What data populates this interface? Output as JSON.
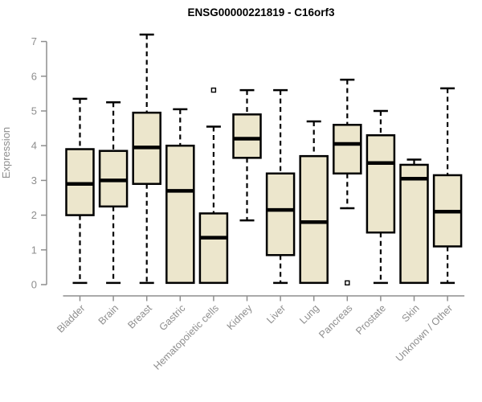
{
  "title": "ENSG00000221819 - C16orf3",
  "chart_data": {
    "type": "boxplot",
    "title": "ENSG00000221819 - C16orf3",
    "xlabel": "",
    "ylabel": "Expression",
    "ylim": [
      0,
      7
    ],
    "yticks": [
      0,
      1,
      2,
      3,
      4,
      5,
      6,
      7
    ],
    "grid": false,
    "legend": "none",
    "categories": [
      "Bladder",
      "Brain",
      "Breast",
      "Gastric",
      "Hematopoietic cells",
      "Kidney",
      "Liver",
      "Lung",
      "Pancreas",
      "Prostate",
      "Skin",
      "Unknown / Other"
    ],
    "series": [
      {
        "category": "Bladder",
        "whisker_low": 0.05,
        "q1": 2.0,
        "median": 2.9,
        "q3": 3.9,
        "whisker_high": 5.35,
        "outliers": []
      },
      {
        "category": "Brain",
        "whisker_low": 0.05,
        "q1": 2.25,
        "median": 3.0,
        "q3": 3.85,
        "whisker_high": 5.25,
        "outliers": []
      },
      {
        "category": "Breast",
        "whisker_low": 0.05,
        "q1": 2.9,
        "median": 3.95,
        "q3": 4.95,
        "whisker_high": 7.2,
        "outliers": []
      },
      {
        "category": "Gastric",
        "whisker_low": 0.05,
        "q1": 0.05,
        "median": 2.7,
        "q3": 4.0,
        "whisker_high": 5.05,
        "outliers": []
      },
      {
        "category": "Hematopoietic cells",
        "whisker_low": 0.05,
        "q1": 0.05,
        "median": 1.35,
        "q3": 2.05,
        "whisker_high": 4.55,
        "outliers": [
          5.6
        ]
      },
      {
        "category": "Kidney",
        "whisker_low": 1.85,
        "q1": 3.65,
        "median": 4.2,
        "q3": 4.9,
        "whisker_high": 5.6,
        "outliers": []
      },
      {
        "category": "Liver",
        "whisker_low": 0.05,
        "q1": 0.85,
        "median": 2.15,
        "q3": 3.2,
        "whisker_high": 5.6,
        "outliers": []
      },
      {
        "category": "Lung",
        "whisker_low": 0.05,
        "q1": 0.05,
        "median": 1.8,
        "q3": 3.7,
        "whisker_high": 4.7,
        "outliers": []
      },
      {
        "category": "Pancreas",
        "whisker_low": 2.2,
        "q1": 3.2,
        "median": 4.05,
        "q3": 4.6,
        "whisker_high": 5.9,
        "outliers": [
          0.05
        ]
      },
      {
        "category": "Prostate",
        "whisker_low": 0.05,
        "q1": 1.5,
        "median": 3.5,
        "q3": 4.3,
        "whisker_high": 5.0,
        "outliers": []
      },
      {
        "category": "Skin",
        "whisker_low": 0.05,
        "q1": 0.05,
        "median": 3.05,
        "q3": 3.45,
        "whisker_high": 3.6,
        "outliers": []
      },
      {
        "category": "Unknown / Other",
        "whisker_low": 0.05,
        "q1": 1.1,
        "median": 2.1,
        "q3": 3.15,
        "whisker_high": 5.65,
        "outliers": []
      }
    ]
  },
  "colors": {
    "box_fill": "#ece6cc",
    "box_stroke": "#000000",
    "median": "#000000",
    "whisker": "#000000",
    "axis": "#8e8e8e",
    "tick_label": "#8e8e8e",
    "title": "#000000",
    "background": "#ffffff"
  }
}
